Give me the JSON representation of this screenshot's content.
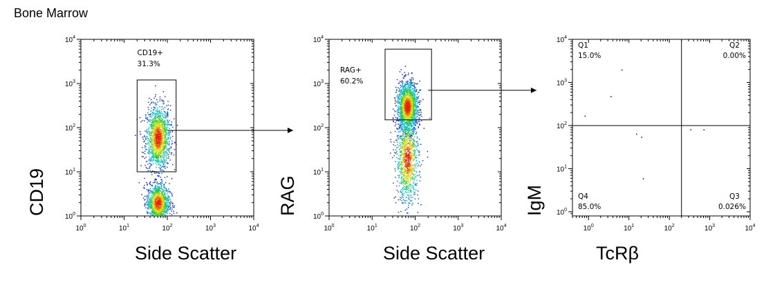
{
  "page": {
    "title": "Bone Marrow"
  },
  "chart_data": [
    {
      "type": "scatter",
      "name": "panel-cd19",
      "xlabel": "Side Scatter",
      "ylabel": "CD19",
      "xscale": "log",
      "yscale": "log",
      "xlim": [
        1,
        10000
      ],
      "ylim": [
        1,
        10000
      ],
      "x_ticks": [
        "10^0",
        "10^1",
        "10^2",
        "10^3",
        "10^4"
      ],
      "y_ticks": [
        "10^0",
        "10^1",
        "10^2",
        "10^3",
        "10^4"
      ],
      "gates": [
        {
          "shape": "rectangle",
          "name": "CD19+",
          "percent": "31.3%",
          "x_range": [
            20,
            160
          ],
          "y_range": [
            10,
            1200
          ]
        }
      ],
      "populations": [
        {
          "center": [
            60,
            60
          ],
          "spread_x": 0.14,
          "spread_y": 0.36,
          "weight": 0.55
        },
        {
          "center": [
            60,
            2
          ],
          "spread_x": 0.13,
          "spread_y": 0.22,
          "weight": 0.45
        }
      ],
      "arrow_to_next": true
    },
    {
      "type": "scatter",
      "name": "panel-rag",
      "xlabel": "Side Scatter",
      "ylabel": "RAG",
      "xscale": "log",
      "yscale": "log",
      "xlim": [
        1,
        10000
      ],
      "ylim": [
        1,
        10000
      ],
      "x_ticks": [
        "10^0",
        "10^1",
        "10^2",
        "10^3",
        "10^4"
      ],
      "y_ticks": [
        "10^0",
        "10^1",
        "10^2",
        "10^3",
        "10^4"
      ],
      "gates": [
        {
          "shape": "rectangle",
          "name": "RAG+",
          "percent": "60.2%",
          "x_range": [
            20,
            240
          ],
          "y_range": [
            150,
            6000
          ]
        }
      ],
      "populations": [
        {
          "center": [
            65,
            300
          ],
          "spread_x": 0.12,
          "spread_y": 0.28,
          "weight": 0.62
        },
        {
          "center": [
            65,
            20
          ],
          "spread_x": 0.13,
          "spread_y": 0.5,
          "weight": 0.38
        }
      ],
      "arrow_to_next": true
    },
    {
      "type": "scatter",
      "name": "panel-igm-tcrb",
      "xlabel": "TcRβ",
      "ylabel": "IgM",
      "xscale": "log",
      "yscale": "log",
      "xlim": [
        0.4,
        10000
      ],
      "ylim": [
        0.8,
        10000
      ],
      "x_ticks": [
        "10^0",
        "10^1",
        "10^2",
        "10^3",
        "10^4"
      ],
      "y_ticks": [
        "10^0",
        "10^1",
        "10^2",
        "10^3",
        "10^4"
      ],
      "quadrant_divider": {
        "x": 200,
        "y": 100
      },
      "quadrants": [
        {
          "id": "Q1",
          "percent": "15.0%",
          "position": "top-left"
        },
        {
          "id": "Q2",
          "percent": "0.00%",
          "position": "top-right"
        },
        {
          "id": "Q3",
          "percent": "0.026%",
          "position": "bottom-right"
        },
        {
          "id": "Q4",
          "percent": "85.0%",
          "position": "bottom-left"
        }
      ],
      "events": [
        {
          "x": 6.5,
          "y": 2000
        },
        {
          "x": 3.5,
          "y": 480
        },
        {
          "x": 15,
          "y": 65
        },
        {
          "x": 20,
          "y": 55
        },
        {
          "x": 0.8,
          "y": 170
        },
        {
          "x": 22,
          "y": 6
        },
        {
          "x": 330,
          "y": 82
        },
        {
          "x": 700,
          "y": 82
        }
      ]
    }
  ]
}
